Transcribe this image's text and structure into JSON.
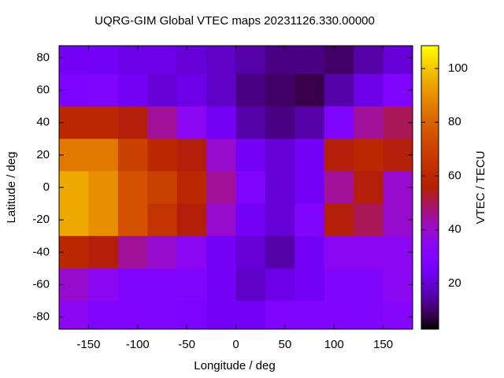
{
  "chart_data": {
    "type": "heatmap",
    "title": "UQRG-GIM Global VTEC maps 20231126.330.00000",
    "x_label": "Longitude / deg",
    "y_label": "Latitude / deg",
    "colorbar_label": "VTEC / TECU",
    "x": [
      -165,
      -135,
      -105,
      -75,
      -45,
      -15,
      15,
      45,
      75,
      105,
      135,
      165
    ],
    "y": [
      80,
      60,
      40,
      20,
      0,
      -20,
      -40,
      -60,
      -80
    ],
    "z": [
      [
        25,
        25,
        22,
        22,
        20,
        18,
        15,
        12,
        12,
        10,
        15,
        20
      ],
      [
        28,
        30,
        25,
        20,
        22,
        18,
        12,
        10,
        8,
        15,
        22,
        30
      ],
      [
        60,
        60,
        55,
        45,
        35,
        25,
        15,
        12,
        15,
        30,
        45,
        50
      ],
      [
        85,
        85,
        70,
        60,
        55,
        40,
        25,
        20,
        25,
        55,
        60,
        55
      ],
      [
        95,
        90,
        75,
        70,
        60,
        45,
        30,
        20,
        25,
        45,
        55,
        40
      ],
      [
        95,
        90,
        75,
        65,
        55,
        40,
        25,
        20,
        30,
        55,
        50,
        40
      ],
      [
        60,
        55,
        45,
        40,
        35,
        25,
        20,
        15,
        25,
        35,
        35,
        35
      ],
      [
        40,
        35,
        30,
        30,
        30,
        25,
        18,
        22,
        25,
        30,
        30,
        35
      ],
      [
        35,
        30,
        30,
        30,
        28,
        25,
        25,
        30,
        30,
        30,
        30,
        32
      ]
    ],
    "xlim": [
      -180,
      180
    ],
    "ylim": [
      -87.5,
      87.5
    ],
    "xticks": [
      -150,
      -100,
      -50,
      0,
      50,
      100,
      150
    ],
    "yticks": [
      -80,
      -60,
      -40,
      -20,
      0,
      20,
      40,
      60,
      80
    ],
    "clim": [
      3,
      108.5
    ],
    "cticks": [
      20,
      40,
      60,
      80,
      100
    ],
    "colormap": "gnuplot"
  }
}
